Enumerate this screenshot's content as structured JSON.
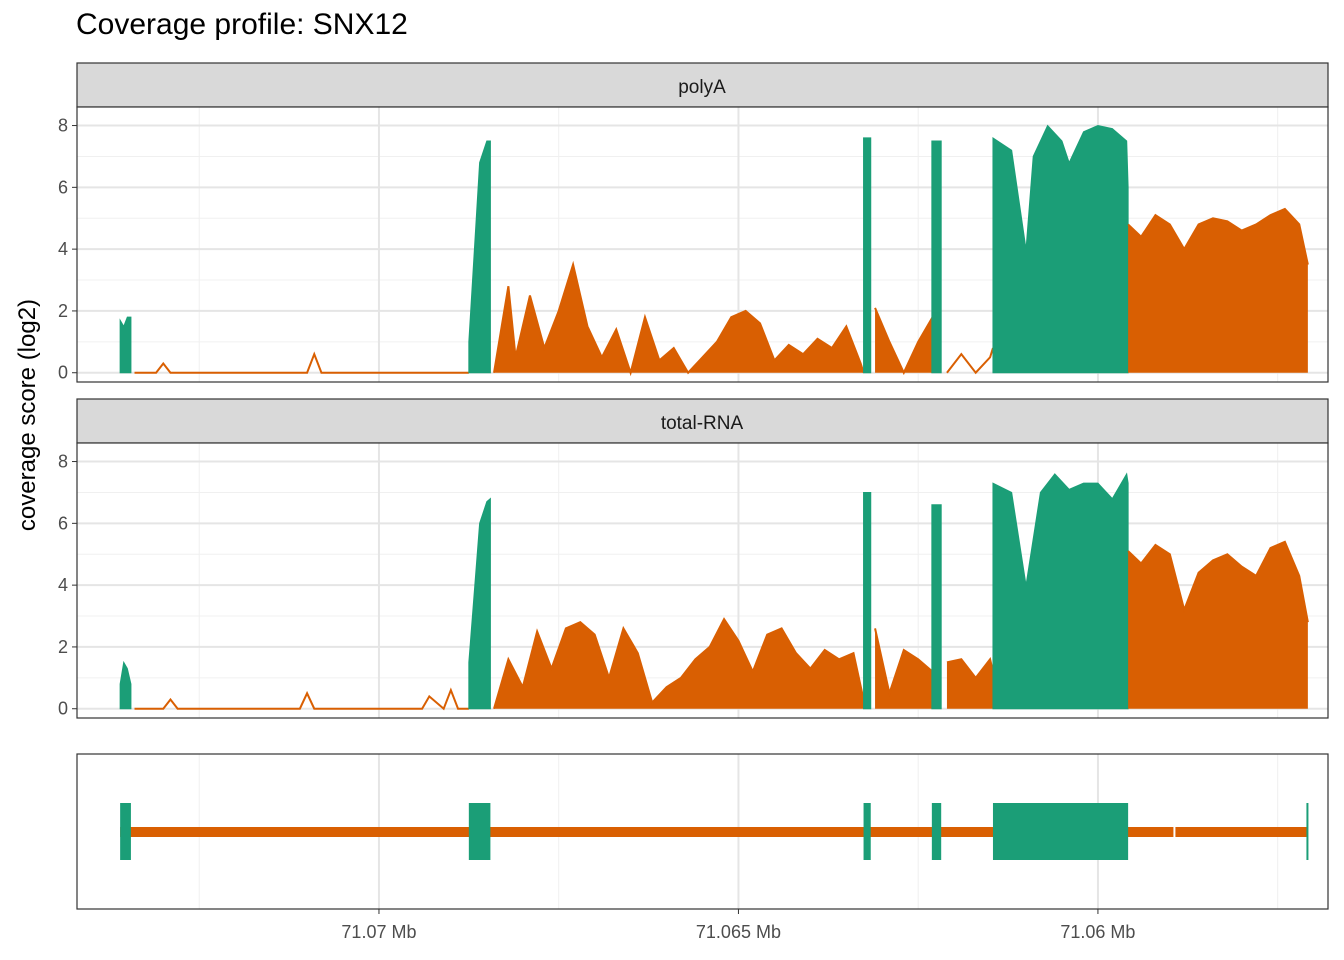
{
  "title": "Coverage profile: SNX12",
  "chart_data": {
    "type": "area",
    "title": "Coverage profile: SNX12",
    "ylabel": "coverage score (log2)",
    "xlabel": "",
    "x_axis_reversed": true,
    "xlim_mb": [
      71.0742,
      71.0568
    ],
    "ylim": [
      -0.3,
      8.6
    ],
    "y_ticks": [
      0,
      2,
      4,
      6,
      8
    ],
    "x_ticks": [
      {
        "value": 71.07,
        "label": "71.07 Mb"
      },
      {
        "value": 71.065,
        "label": "71.065 Mb"
      },
      {
        "value": 71.06,
        "label": "71.06 Mb"
      }
    ],
    "grid": true,
    "colors": {
      "exon": "#1b9e77",
      "intron": "#d95f02",
      "strip": "#d9d9d9"
    },
    "exons_mb": [
      [
        71.0736,
        71.07345
      ],
      [
        71.06875,
        71.06845
      ],
      [
        71.06326,
        71.06316
      ],
      [
        71.06231,
        71.06218
      ],
      [
        71.06146,
        71.05958
      ],
      [
        71.0571,
        71.05708
      ]
    ],
    "gap_mb": [
      71.05895,
      71.05893
    ],
    "panels": [
      {
        "label": "polyA",
        "segments": [
          {
            "type": "exon",
            "points": [
              [
                71.0736,
                1.7
              ],
              [
                71.07355,
                1.5
              ],
              [
                71.0735,
                1.8
              ],
              [
                71.07345,
                1.8
              ]
            ]
          },
          {
            "type": "intron",
            "points": [
              [
                71.0734,
                0
              ],
              [
                71.0731,
                0
              ],
              [
                71.073,
                0.3
              ],
              [
                71.0729,
                0
              ],
              [
                71.071,
                0
              ],
              [
                71.0709,
                0.6
              ],
              [
                71.0708,
                0
              ],
              [
                71.069,
                0
              ],
              [
                71.06875,
                0
              ]
            ]
          },
          {
            "type": "exon",
            "points": [
              [
                71.06875,
                1.0
              ],
              [
                71.0686,
                6.8
              ],
              [
                71.0685,
                7.5
              ],
              [
                71.06845,
                7.5
              ]
            ]
          },
          {
            "type": "intron",
            "points": [
              [
                71.0684,
                0
              ],
              [
                71.0682,
                2.8
              ],
              [
                71.0681,
                0.5
              ],
              [
                71.0679,
                2.5
              ],
              [
                71.0677,
                0.8
              ],
              [
                71.0675,
                2.0
              ],
              [
                71.0673,
                3.5
              ],
              [
                71.0671,
                1.5
              ],
              [
                71.0669,
                0.5
              ],
              [
                71.0667,
                1.4
              ],
              [
                71.0665,
                0
              ],
              [
                71.0663,
                1.8
              ],
              [
                71.0661,
                0.4
              ],
              [
                71.0659,
                0.8
              ],
              [
                71.0657,
                0
              ],
              [
                71.0655,
                0.5
              ],
              [
                71.0653,
                1.0
              ],
              [
                71.0651,
                1.8
              ],
              [
                71.0649,
                2.0
              ],
              [
                71.0647,
                1.6
              ],
              [
                71.0645,
                0.4
              ],
              [
                71.0643,
                0.9
              ],
              [
                71.0641,
                0.6
              ],
              [
                71.0639,
                1.1
              ],
              [
                71.0637,
                0.8
              ],
              [
                71.0635,
                1.5
              ],
              [
                71.0633,
                0.3
              ],
              [
                71.06326,
                0
              ]
            ]
          },
          {
            "type": "exon",
            "points": [
              [
                71.06326,
                7.6
              ],
              [
                71.06316,
                7.6
              ]
            ]
          },
          {
            "type": "intron",
            "points": [
              [
                71.0631,
                2.1
              ],
              [
                71.0629,
                1.0
              ],
              [
                71.0627,
                0
              ],
              [
                71.0625,
                1.0
              ],
              [
                71.0623,
                1.8
              ],
              [
                71.06231,
                0
              ]
            ]
          },
          {
            "type": "exon",
            "points": [
              [
                71.06231,
                7.5
              ],
              [
                71.06218,
                7.5
              ]
            ]
          },
          {
            "type": "intron",
            "points": [
              [
                71.0621,
                0
              ],
              [
                71.0619,
                0.6
              ],
              [
                71.0617,
                0
              ],
              [
                71.0615,
                0.5
              ],
              [
                71.06146,
                0.8
              ]
            ]
          },
          {
            "type": "exon",
            "points": [
              [
                71.06146,
                7.6
              ],
              [
                71.0612,
                7.2
              ],
              [
                71.061,
                4.0
              ],
              [
                71.0609,
                7.0
              ],
              [
                71.0607,
                8.0
              ],
              [
                71.0605,
                7.5
              ],
              [
                71.0604,
                6.8
              ],
              [
                71.0602,
                7.8
              ],
              [
                71.06,
                8.0
              ],
              [
                71.0598,
                7.9
              ],
              [
                71.0596,
                7.5
              ],
              [
                71.05958,
                6.0
              ]
            ]
          },
          {
            "type": "intron",
            "points": [
              [
                71.05958,
                4.8
              ],
              [
                71.0594,
                4.4
              ],
              [
                71.0592,
                5.1
              ],
              [
                71.059,
                4.8
              ],
              [
                71.0588,
                4.0
              ],
              [
                71.0586,
                4.8
              ],
              [
                71.0584,
                5.0
              ],
              [
                71.0582,
                4.9
              ],
              [
                71.058,
                4.6
              ],
              [
                71.0578,
                4.8
              ],
              [
                71.0576,
                5.1
              ],
              [
                71.0574,
                5.3
              ],
              [
                71.0572,
                4.8
              ],
              [
                71.05708,
                3.5
              ]
            ]
          }
        ]
      },
      {
        "label": "total-RNA",
        "segments": [
          {
            "type": "exon",
            "points": [
              [
                71.0736,
                0.8
              ],
              [
                71.07355,
                1.5
              ],
              [
                71.0735,
                1.3
              ],
              [
                71.07345,
                0.8
              ]
            ]
          },
          {
            "type": "intron",
            "points": [
              [
                71.0734,
                0
              ],
              [
                71.073,
                0
              ],
              [
                71.0729,
                0.3
              ],
              [
                71.0728,
                0
              ],
              [
                71.0711,
                0
              ],
              [
                71.071,
                0.5
              ],
              [
                71.0709,
                0
              ],
              [
                71.0694,
                0
              ],
              [
                71.0693,
                0.4
              ],
              [
                71.0691,
                0
              ],
              [
                71.069,
                0.6
              ],
              [
                71.0689,
                0
              ],
              [
                71.06875,
                0
              ]
            ]
          },
          {
            "type": "exon",
            "points": [
              [
                71.06875,
                1.5
              ],
              [
                71.0686,
                6.0
              ],
              [
                71.0685,
                6.7
              ],
              [
                71.06845,
                6.8
              ]
            ]
          },
          {
            "type": "intron",
            "points": [
              [
                71.0684,
                0
              ],
              [
                71.0682,
                1.6
              ],
              [
                71.068,
                0.7
              ],
              [
                71.0678,
                2.5
              ],
              [
                71.0676,
                1.3
              ],
              [
                71.0674,
                2.6
              ],
              [
                71.0672,
                2.8
              ],
              [
                71.067,
                2.4
              ],
              [
                71.0668,
                1.0
              ],
              [
                71.0666,
                2.6
              ],
              [
                71.0664,
                1.8
              ],
              [
                71.0662,
                0.2
              ],
              [
                71.066,
                0.7
              ],
              [
                71.0658,
                1.0
              ],
              [
                71.0656,
                1.6
              ],
              [
                71.0654,
                2.0
              ],
              [
                71.0652,
                2.9
              ],
              [
                71.065,
                2.2
              ],
              [
                71.0648,
                1.2
              ],
              [
                71.0646,
                2.4
              ],
              [
                71.0644,
                2.6
              ],
              [
                71.0642,
                1.8
              ],
              [
                71.064,
                1.3
              ],
              [
                71.0638,
                1.9
              ],
              [
                71.0636,
                1.6
              ],
              [
                71.0634,
                1.8
              ],
              [
                71.06326,
                0.3
              ]
            ]
          },
          {
            "type": "exon",
            "points": [
              [
                71.06326,
                7.0
              ],
              [
                71.06316,
                7.0
              ]
            ]
          },
          {
            "type": "intron",
            "points": [
              [
                71.0631,
                2.6
              ],
              [
                71.0629,
                0.5
              ],
              [
                71.0627,
                1.9
              ],
              [
                71.0625,
                1.6
              ],
              [
                71.0623,
                1.2
              ],
              [
                71.06231,
                0.8
              ]
            ]
          },
          {
            "type": "exon",
            "points": [
              [
                71.06231,
                6.6
              ],
              [
                71.06218,
                6.6
              ]
            ]
          },
          {
            "type": "intron",
            "points": [
              [
                71.0621,
                1.5
              ],
              [
                71.0619,
                1.6
              ],
              [
                71.0617,
                1.0
              ],
              [
                71.0615,
                1.6
              ],
              [
                71.06146,
                1.2
              ]
            ]
          },
          {
            "type": "exon",
            "points": [
              [
                71.06146,
                7.3
              ],
              [
                71.0612,
                7.0
              ],
              [
                71.061,
                4.0
              ],
              [
                71.0608,
                7.0
              ],
              [
                71.0606,
                7.6
              ],
              [
                71.0604,
                7.1
              ],
              [
                71.0602,
                7.3
              ],
              [
                71.06,
                7.3
              ],
              [
                71.0598,
                6.8
              ],
              [
                71.0596,
                7.6
              ],
              [
                71.05958,
                7.3
              ]
            ]
          },
          {
            "type": "intron",
            "points": [
              [
                71.05958,
                5.1
              ],
              [
                71.0594,
                4.7
              ],
              [
                71.0592,
                5.3
              ],
              [
                71.059,
                5.0
              ],
              [
                71.0588,
                3.2
              ],
              [
                71.0586,
                4.4
              ],
              [
                71.0584,
                4.8
              ],
              [
                71.0582,
                5.0
              ],
              [
                71.058,
                4.6
              ],
              [
                71.0578,
                4.3
              ],
              [
                71.0576,
                5.2
              ],
              [
                71.0574,
                5.4
              ],
              [
                71.0572,
                4.3
              ],
              [
                71.05708,
                2.8
              ]
            ]
          }
        ]
      }
    ]
  }
}
